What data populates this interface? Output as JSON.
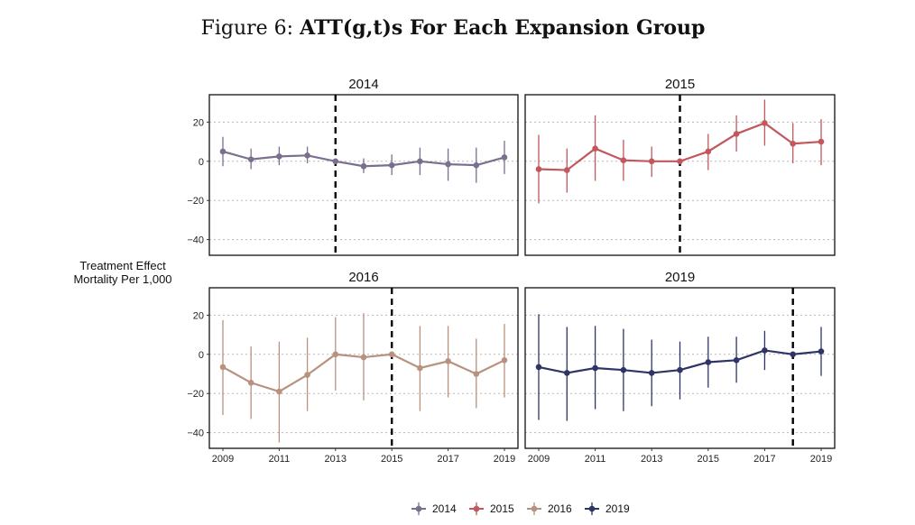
{
  "figure": {
    "title_prefix": "Figure 6:",
    "title_bold": "ATT(g,t)s For Each Expansion Group",
    "ylabel_line1": "Treatment Effect",
    "ylabel_line2": "Mortality Per 1,000"
  },
  "chart_data": {
    "type": "line",
    "x_ticks": [
      2009,
      2011,
      2013,
      2015,
      2017,
      2019
    ],
    "y_ticks": [
      20,
      0,
      -20,
      -40
    ],
    "xlim": [
      2008.5,
      2019.5
    ],
    "ylim": [
      -48,
      34
    ],
    "grid": "horizontal dotted",
    "legend_position": "bottom",
    "panels": [
      {
        "title": "2014",
        "color": "#7b6f8e",
        "vline": 2013,
        "x": [
          2009,
          2010,
          2011,
          2012,
          2013,
          2014,
          2015,
          2016,
          2017,
          2018,
          2019
        ],
        "y": [
          5,
          1,
          2.5,
          3,
          0,
          -2.5,
          -2,
          0,
          -1.5,
          -2,
          2
        ],
        "ci_low": [
          -2.5,
          -4,
          -2,
          -1,
          -1,
          -6,
          -7,
          -7,
          -10,
          -11,
          -6.5
        ],
        "ci_high": [
          12.5,
          6.5,
          7.5,
          7.5,
          1,
          1.5,
          3.5,
          7,
          6.5,
          7,
          10.5
        ]
      },
      {
        "title": "2015",
        "color": "#c2575c",
        "vline": 2014,
        "x": [
          2009,
          2010,
          2011,
          2012,
          2013,
          2014,
          2015,
          2016,
          2017,
          2018,
          2019
        ],
        "y": [
          -4,
          -4.5,
          6.5,
          0.5,
          0,
          0,
          5,
          14,
          19.5,
          9,
          10
        ],
        "ci_low": [
          -21.5,
          -16,
          -10,
          -10,
          -8,
          -1,
          -4.5,
          5,
          8,
          -1,
          -2
        ],
        "ci_high": [
          13.5,
          6.5,
          23.5,
          11,
          7.5,
          1,
          14,
          23.5,
          31.5,
          19.5,
          21.5
        ]
      },
      {
        "title": "2016",
        "color": "#b8927e",
        "vline": 2015,
        "x": [
          2009,
          2010,
          2011,
          2012,
          2013,
          2014,
          2015,
          2016,
          2017,
          2018,
          2019
        ],
        "y": [
          -6.5,
          -14.5,
          -19,
          -10.5,
          0,
          -1.5,
          0,
          -7,
          -3.5,
          -10,
          -3
        ],
        "ci_low": [
          -31,
          -33,
          -45,
          -29,
          -18.5,
          -23.5,
          -1,
          -29,
          -22,
          -27.5,
          -22
        ],
        "ci_high": [
          17.5,
          4,
          6.5,
          8.5,
          19,
          21,
          1,
          14.5,
          14.5,
          8,
          15.5
        ]
      },
      {
        "title": "2019",
        "color": "#2e3466",
        "vline": 2018,
        "x": [
          2009,
          2010,
          2011,
          2012,
          2013,
          2014,
          2015,
          2016,
          2017,
          2018,
          2019
        ],
        "y": [
          -6.5,
          -9.5,
          -7,
          -8,
          -9.5,
          -8,
          -4,
          -3,
          2,
          0,
          1.5
        ],
        "ci_low": [
          -33.5,
          -34,
          -28,
          -29,
          -26.5,
          -23,
          -17,
          -14.5,
          -8,
          -1,
          -11
        ],
        "ci_high": [
          20.5,
          14,
          14.5,
          13,
          7.5,
          6.5,
          9,
          9,
          12,
          1,
          14
        ]
      }
    ],
    "legend": [
      {
        "label": "2014",
        "color": "#7b6f8e"
      },
      {
        "label": "2015",
        "color": "#c2575c"
      },
      {
        "label": "2016",
        "color": "#b8927e"
      },
      {
        "label": "2019",
        "color": "#2e3466"
      }
    ]
  }
}
